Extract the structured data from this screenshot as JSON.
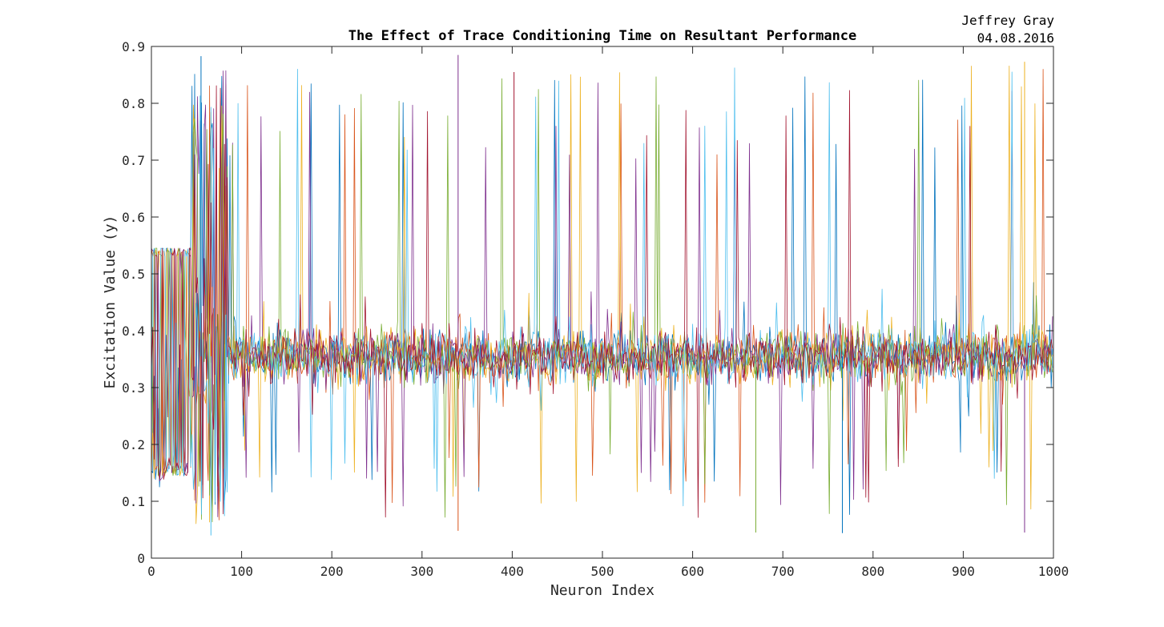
{
  "annotations": {
    "author": "Jeffrey Gray",
    "date": "04.08.2016"
  },
  "chart_data": {
    "type": "line",
    "title": "The Effect of Trace Conditioning Time on Resultant Performance",
    "xlabel": "Neuron Index",
    "ylabel": "Excitation Value (y)",
    "xlim": [
      0,
      1000
    ],
    "ylim": [
      0,
      0.9
    ],
    "xticks": [
      0,
      100,
      200,
      300,
      400,
      500,
      600,
      700,
      800,
      900,
      1000
    ],
    "yticks": [
      0,
      0.1,
      0.2,
      0.3,
      0.4,
      0.5,
      0.6,
      0.7,
      0.8,
      0.9
    ],
    "xtick_labels": [
      "0",
      "100",
      "200",
      "300",
      "400",
      "500",
      "600",
      "700",
      "800",
      "900",
      "1000"
    ],
    "ytick_labels": [
      "0",
      "0.1",
      "0.2",
      "0.3",
      "0.4",
      "0.5",
      "0.6",
      "0.7",
      "0.8",
      "0.9"
    ],
    "grid": false,
    "series_colors": [
      "#0072BD",
      "#D95319",
      "#EDB120",
      "#7E2F8E",
      "#77AC30",
      "#4DBEEE",
      "#A2142F"
    ],
    "series_count": 7,
    "regions": [
      {
        "x": [
          0,
          45
        ],
        "band": [
          0.11,
          0.545
        ],
        "center": 0.16
      },
      {
        "x": [
          45,
          85
        ],
        "band": [
          0.04,
          0.88
        ],
        "center": 0.35
      },
      {
        "x": [
          85,
          1000
        ],
        "band": [
          0.05,
          0.88
        ],
        "center": 0.355
      }
    ],
    "overall_mean": 0.355,
    "typical_range": [
      0.27,
      0.45
    ],
    "peak_examples": [
      {
        "x": 55,
        "y": 0.883
      },
      {
        "x": 340,
        "y": 0.885
      },
      {
        "x": 402,
        "y": 0.855
      },
      {
        "x": 968,
        "y": 0.873
      }
    ],
    "trough_examples": [
      {
        "x": 66,
        "y": 0.04
      },
      {
        "x": 340,
        "y": 0.048
      },
      {
        "x": 670,
        "y": 0.045
      },
      {
        "x": 766,
        "y": 0.044
      },
      {
        "x": 968,
        "y": 0.045
      }
    ]
  }
}
